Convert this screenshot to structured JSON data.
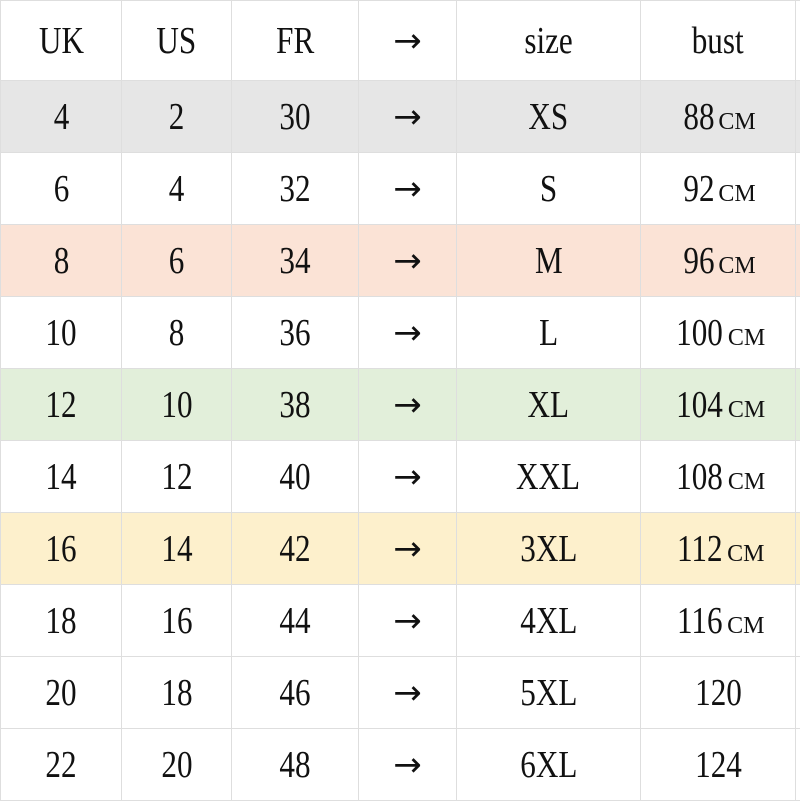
{
  "headers": [
    "UK",
    "US",
    "FR",
    "→",
    "size",
    "bust"
  ],
  "rows": [
    {
      "uk": "4",
      "us": "2",
      "fr": "30",
      "arrow": "→",
      "size": "XS",
      "bust": "88",
      "unit": "CM",
      "bg": "#e6e6e6"
    },
    {
      "uk": "6",
      "us": "4",
      "fr": "32",
      "arrow": "→",
      "size": "S",
      "bust": "92",
      "unit": "CM",
      "bg": "#ffffff"
    },
    {
      "uk": "8",
      "us": "6",
      "fr": "34",
      "arrow": "→",
      "size": "M",
      "bust": "96",
      "unit": "CM",
      "bg": "#fbe3d6"
    },
    {
      "uk": "10",
      "us": "8",
      "fr": "36",
      "arrow": "→",
      "size": "L",
      "bust": "100",
      "unit": "CM",
      "bg": "#ffffff"
    },
    {
      "uk": "12",
      "us": "10",
      "fr": "38",
      "arrow": "→",
      "size": "XL",
      "bust": "104",
      "unit": "CM",
      "bg": "#e2efda"
    },
    {
      "uk": "14",
      "us": "12",
      "fr": "40",
      "arrow": "→",
      "size": "XXL",
      "bust": "108",
      "unit": "CM",
      "bg": "#ffffff"
    },
    {
      "uk": "16",
      "us": "14",
      "fr": "42",
      "arrow": "→",
      "size": "3XL",
      "bust": "112",
      "unit": "CM",
      "bg": "#fdf0cc"
    },
    {
      "uk": "18",
      "us": "16",
      "fr": "44",
      "arrow": "→",
      "size": "4XL",
      "bust": "116",
      "unit": "CM",
      "bg": "#ffffff"
    },
    {
      "uk": "20",
      "us": "18",
      "fr": "46",
      "arrow": "→",
      "size": "5XL",
      "bust": "120",
      "unit": "",
      "bg": "#ffffff"
    },
    {
      "uk": "22",
      "us": "20",
      "fr": "48",
      "arrow": "→",
      "size": "6XL",
      "bust": "124",
      "unit": "",
      "bg": "#ffffff"
    }
  ]
}
